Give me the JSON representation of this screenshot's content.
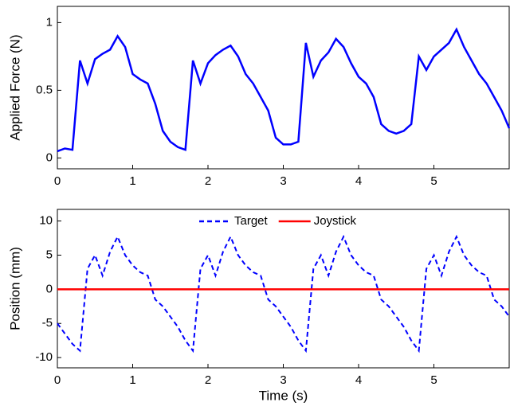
{
  "chart_data": [
    {
      "type": "line",
      "ylabel": "Applied Force (N)",
      "x": [
        0,
        0.1,
        0.2,
        0.3,
        0.4,
        0.5,
        0.6,
        0.7,
        0.8,
        0.9,
        1.0,
        1.1,
        1.2,
        1.3,
        1.4,
        1.5,
        1.6,
        1.7,
        1.8,
        1.9,
        2.0,
        2.1,
        2.2,
        2.3,
        2.4,
        2.5,
        2.6,
        2.7,
        2.8,
        2.9,
        3.0,
        3.1,
        3.2,
        3.3,
        3.4,
        3.5,
        3.6,
        3.7,
        3.8,
        3.9,
        4.0,
        4.1,
        4.2,
        4.3,
        4.4,
        4.5,
        4.6,
        4.7,
        4.8,
        4.9,
        5.0,
        5.1,
        5.2,
        5.3,
        5.4,
        5.5,
        5.6,
        5.7,
        5.8,
        5.9,
        6.0
      ],
      "series": [
        {
          "name": "Force",
          "color": "#0000ff",
          "values": [
            0.05,
            0.07,
            0.06,
            0.72,
            0.55,
            0.73,
            0.77,
            0.8,
            0.9,
            0.82,
            0.62,
            0.58,
            0.55,
            0.4,
            0.2,
            0.12,
            0.08,
            0.06,
            0.72,
            0.55,
            0.7,
            0.76,
            0.8,
            0.83,
            0.75,
            0.62,
            0.55,
            0.45,
            0.35,
            0.15,
            0.1,
            0.1,
            0.12,
            0.85,
            0.6,
            0.72,
            0.78,
            0.88,
            0.82,
            0.7,
            0.6,
            0.55,
            0.45,
            0.25,
            0.2,
            0.18,
            0.2,
            0.25,
            0.75,
            0.65,
            0.75,
            0.8,
            0.85,
            0.95,
            0.82,
            0.72,
            0.62,
            0.55,
            0.45,
            0.35,
            0.22
          ]
        }
      ],
      "xlim": [
        0,
        6
      ],
      "xticks": [
        0,
        1,
        2,
        3,
        4,
        5
      ],
      "ylim": [
        -0.08,
        1.12
      ],
      "yticks": [
        0,
        0.5,
        1
      ]
    },
    {
      "type": "line",
      "xlabel": "Time (s)",
      "ylabel": "Position (mm)",
      "x": [
        0,
        0.1,
        0.2,
        0.3,
        0.4,
        0.5,
        0.6,
        0.7,
        0.8,
        0.9,
        1.0,
        1.1,
        1.2,
        1.3,
        1.4,
        1.5,
        1.6,
        1.7,
        1.8,
        1.9,
        2.0,
        2.1,
        2.2,
        2.3,
        2.4,
        2.5,
        2.6,
        2.7,
        2.8,
        2.9,
        3.0,
        3.1,
        3.2,
        3.3,
        3.4,
        3.5,
        3.6,
        3.7,
        3.8,
        3.9,
        4.0,
        4.1,
        4.2,
        4.3,
        4.4,
        4.5,
        4.6,
        4.7,
        4.8,
        4.9,
        5.0,
        5.1,
        5.2,
        5.3,
        5.4,
        5.5,
        5.6,
        5.7,
        5.8,
        5.9,
        6.0
      ],
      "series": [
        {
          "name": "Target",
          "color": "#0000ff",
          "dashed": true,
          "values": [
            -5,
            -6.5,
            -8,
            -9,
            3,
            5,
            2,
            5.5,
            7.7,
            5,
            3.5,
            2.5,
            2,
            -1.5,
            -2.5,
            -4,
            -5.5,
            -7.5,
            -9,
            3,
            5,
            2,
            5.5,
            7.7,
            5,
            3.5,
            2.5,
            2,
            -1.5,
            -2.5,
            -4,
            -5.5,
            -7.5,
            -9,
            3,
            5,
            2,
            5.5,
            7.7,
            5,
            3.5,
            2.5,
            2,
            -1.5,
            -2.5,
            -4,
            -5.5,
            -7.5,
            -9,
            3,
            5,
            2,
            5.5,
            7.7,
            5,
            3.5,
            2.5,
            2,
            -1.5,
            -2.5,
            -4
          ]
        },
        {
          "name": "Joystick",
          "color": "#ff0000",
          "dashed": false,
          "values": [
            0,
            0,
            0,
            0,
            0,
            0,
            0,
            0,
            0,
            0,
            0,
            0,
            0,
            0,
            0,
            0,
            0,
            0,
            0,
            0,
            0,
            0,
            0,
            0,
            0,
            0,
            0,
            0,
            0,
            0,
            0,
            0,
            0,
            0,
            0,
            0,
            0,
            0,
            0,
            0,
            0,
            0,
            0,
            0,
            0,
            0,
            0,
            0,
            0,
            0,
            0,
            0,
            0,
            0,
            0,
            0,
            0,
            0,
            0,
            0,
            0
          ]
        }
      ],
      "legend": "top",
      "xlim": [
        0,
        6
      ],
      "xticks": [
        0,
        1,
        2,
        3,
        4,
        5
      ],
      "ylim": [
        -11.5,
        11.7
      ],
      "yticks": [
        -10,
        -5,
        0,
        5,
        10
      ]
    }
  ]
}
